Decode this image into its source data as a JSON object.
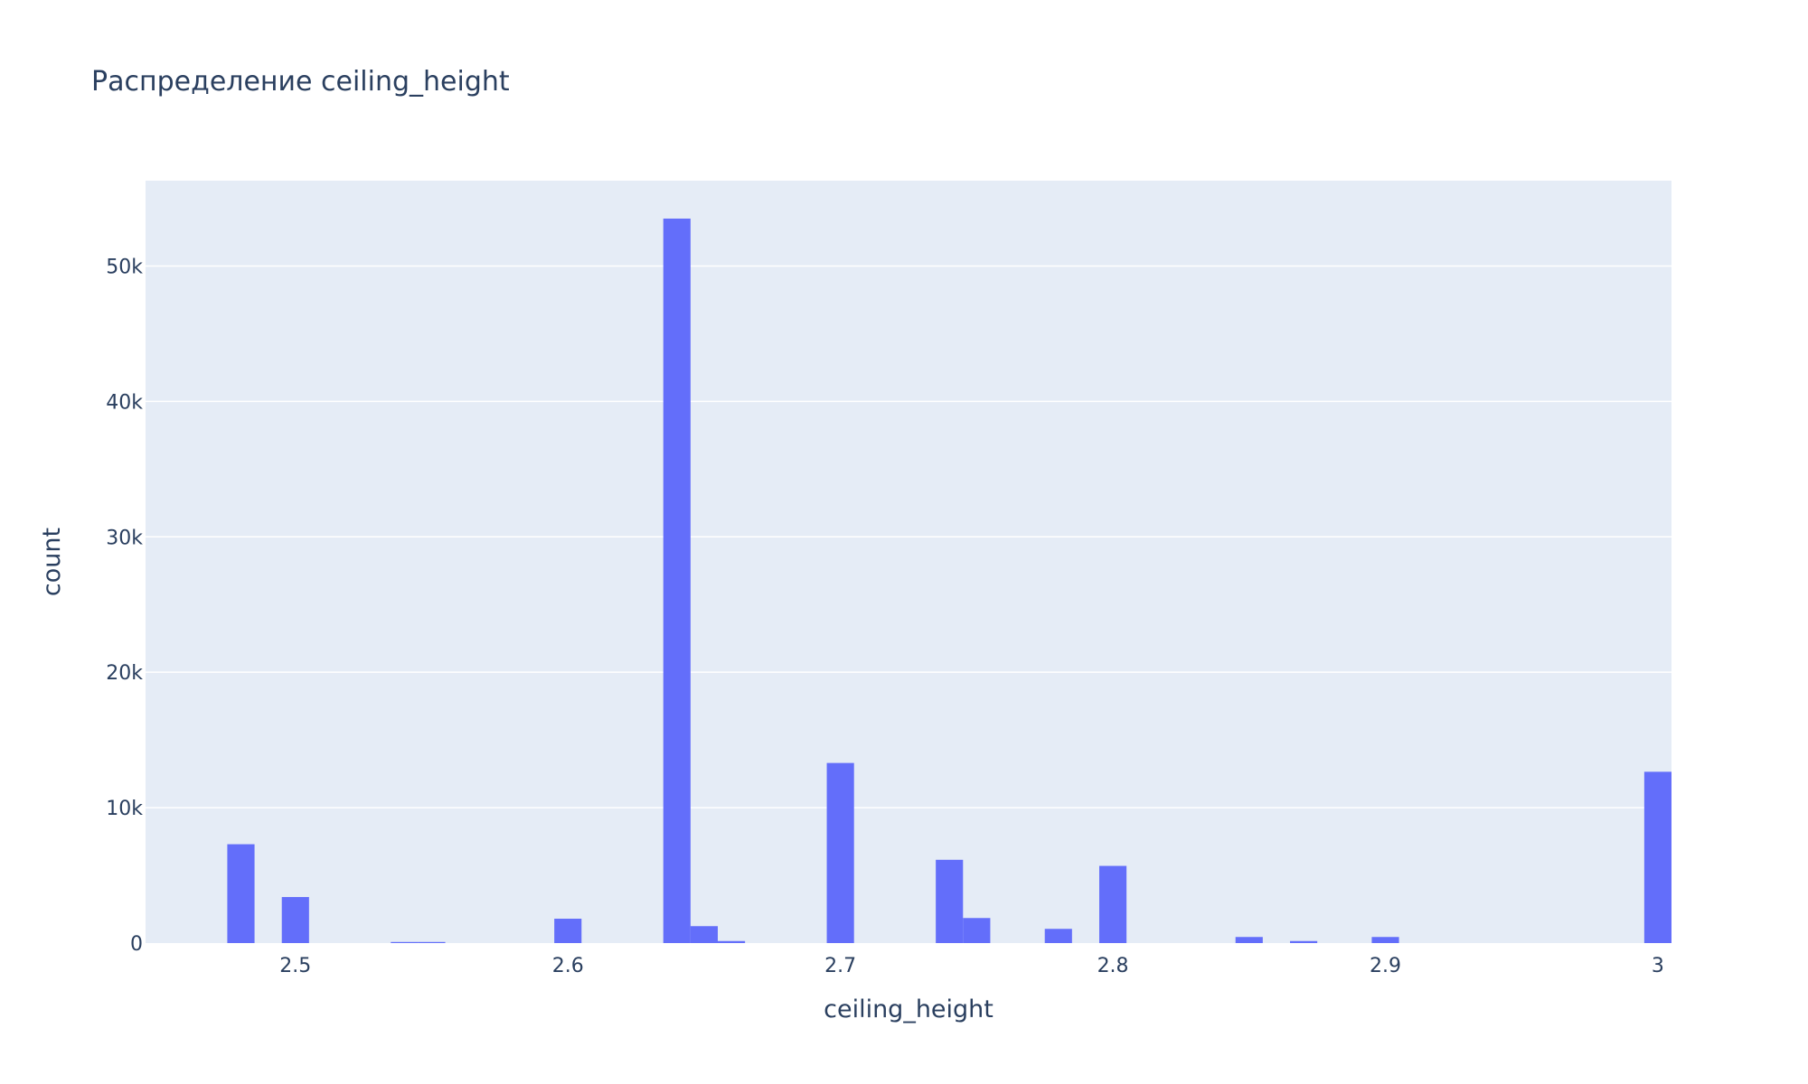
{
  "chart_data": {
    "type": "bar",
    "title": "Распределение ceiling_height",
    "xlabel": "ceiling_height",
    "ylabel": "count",
    "bin_width": 0.01,
    "xlim": [
      2.445,
      3.005
    ],
    "ylim": [
      0,
      56300
    ],
    "x_ticks": [
      {
        "value": 2.5,
        "label": "2.5"
      },
      {
        "value": 2.6,
        "label": "2.6"
      },
      {
        "value": 2.7,
        "label": "2.7"
      },
      {
        "value": 2.8,
        "label": "2.8"
      },
      {
        "value": 2.9,
        "label": "2.9"
      },
      {
        "value": 3.0,
        "label": "3"
      }
    ],
    "y_ticks": [
      {
        "value": 0,
        "label": "0"
      },
      {
        "value": 10000,
        "label": "10k"
      },
      {
        "value": 20000,
        "label": "20k"
      },
      {
        "value": 30000,
        "label": "30k"
      },
      {
        "value": 40000,
        "label": "40k"
      },
      {
        "value": 50000,
        "label": "50k"
      }
    ],
    "grid": true,
    "colors": {
      "bar": "#636efa",
      "plot_background": "#e5ecf6",
      "grid": "#ffffff",
      "text": "#2a3f5f"
    },
    "series": [
      {
        "bins": [
          {
            "x_start": 2.475,
            "x_end": 2.485,
            "count": 7300
          },
          {
            "x_start": 2.495,
            "x_end": 2.505,
            "count": 3400
          },
          {
            "x_start": 2.535,
            "x_end": 2.545,
            "count": 80
          },
          {
            "x_start": 2.545,
            "x_end": 2.555,
            "count": 80
          },
          {
            "x_start": 2.595,
            "x_end": 2.605,
            "count": 1800
          },
          {
            "x_start": 2.635,
            "x_end": 2.645,
            "count": 53500
          },
          {
            "x_start": 2.645,
            "x_end": 2.655,
            "count": 1250
          },
          {
            "x_start": 2.655,
            "x_end": 2.665,
            "count": 150
          },
          {
            "x_start": 2.695,
            "x_end": 2.705,
            "count": 13300
          },
          {
            "x_start": 2.735,
            "x_end": 2.745,
            "count": 6150
          },
          {
            "x_start": 2.745,
            "x_end": 2.755,
            "count": 1850
          },
          {
            "x_start": 2.775,
            "x_end": 2.785,
            "count": 1050
          },
          {
            "x_start": 2.795,
            "x_end": 2.805,
            "count": 5700
          },
          {
            "x_start": 2.845,
            "x_end": 2.855,
            "count": 450
          },
          {
            "x_start": 2.865,
            "x_end": 2.875,
            "count": 150
          },
          {
            "x_start": 2.895,
            "x_end": 2.905,
            "count": 450
          },
          {
            "x_start": 2.995,
            "x_end": 3.005,
            "count": 12650
          }
        ]
      }
    ]
  }
}
